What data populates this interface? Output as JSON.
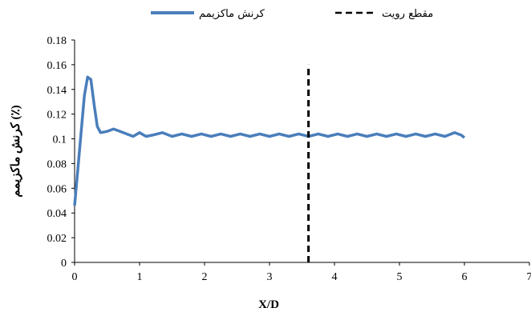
{
  "chart_data": {
    "type": "line",
    "xlabel": "X/D",
    "ylabel": "کرنش ماکزیمم (٪)",
    "xlim": [
      0,
      7
    ],
    "ylim": [
      0,
      0.18
    ],
    "x_ticks": [
      "0",
      "1",
      "2",
      "3",
      "4",
      "5",
      "6",
      "7"
    ],
    "y_ticks": [
      "0",
      "0.02",
      "0.04",
      "0.06",
      "0.08",
      "0.1",
      "0.12",
      "0.14",
      "0.16",
      "0.18"
    ],
    "grid": false,
    "legend_position": "top",
    "series": [
      {
        "name": "کرنش ماکزیمم",
        "color": "#4a7ebb",
        "style": "solid",
        "points": [
          [
            0.0,
            0.046
          ],
          [
            0.05,
            0.075
          ],
          [
            0.1,
            0.105
          ],
          [
            0.15,
            0.135
          ],
          [
            0.2,
            0.15
          ],
          [
            0.25,
            0.148
          ],
          [
            0.3,
            0.128
          ],
          [
            0.35,
            0.11
          ],
          [
            0.4,
            0.105
          ],
          [
            0.5,
            0.106
          ],
          [
            0.6,
            0.108
          ],
          [
            0.7,
            0.106
          ],
          [
            0.8,
            0.104
          ],
          [
            0.9,
            0.102
          ],
          [
            1.0,
            0.105
          ],
          [
            1.1,
            0.102
          ],
          [
            1.2,
            0.103
          ],
          [
            1.35,
            0.105
          ],
          [
            1.5,
            0.102
          ],
          [
            1.65,
            0.104
          ],
          [
            1.8,
            0.102
          ],
          [
            1.95,
            0.104
          ],
          [
            2.1,
            0.102
          ],
          [
            2.25,
            0.104
          ],
          [
            2.4,
            0.102
          ],
          [
            2.55,
            0.104
          ],
          [
            2.7,
            0.102
          ],
          [
            2.85,
            0.104
          ],
          [
            3.0,
            0.102
          ],
          [
            3.15,
            0.104
          ],
          [
            3.3,
            0.102
          ],
          [
            3.45,
            0.104
          ],
          [
            3.6,
            0.102
          ],
          [
            3.75,
            0.104
          ],
          [
            3.9,
            0.102
          ],
          [
            4.05,
            0.104
          ],
          [
            4.2,
            0.102
          ],
          [
            4.35,
            0.104
          ],
          [
            4.5,
            0.102
          ],
          [
            4.65,
            0.104
          ],
          [
            4.8,
            0.102
          ],
          [
            4.95,
            0.104
          ],
          [
            5.1,
            0.102
          ],
          [
            5.25,
            0.104
          ],
          [
            5.4,
            0.102
          ],
          [
            5.55,
            0.104
          ],
          [
            5.7,
            0.102
          ],
          [
            5.85,
            0.105
          ],
          [
            5.95,
            0.103
          ],
          [
            6.0,
            0.101
          ]
        ]
      },
      {
        "name": "مقطع رویت",
        "color": "#000000",
        "style": "dashed",
        "points": [
          [
            3.6,
            0.0
          ],
          [
            3.6,
            0.16
          ]
        ]
      }
    ]
  }
}
